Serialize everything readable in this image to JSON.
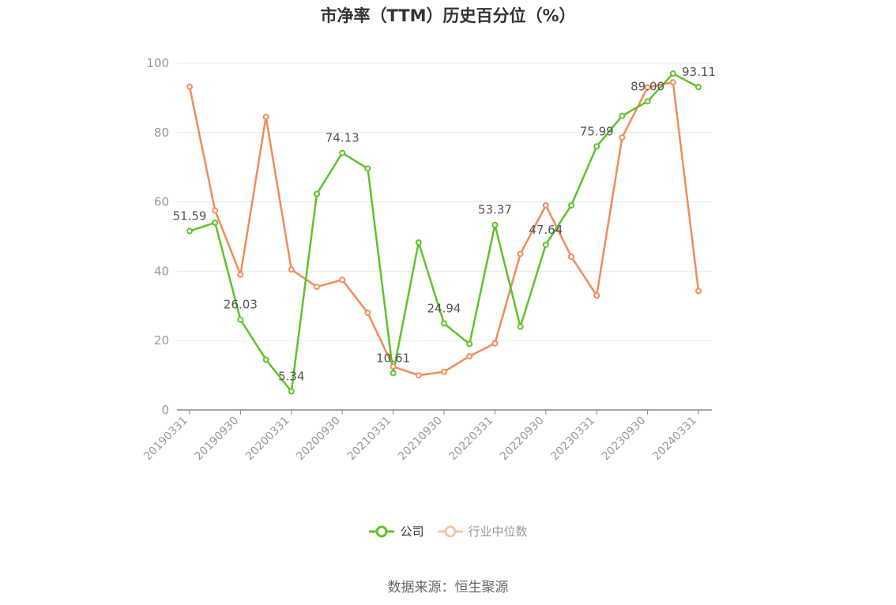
{
  "title": "市净率（TTM）历史百分位（%）",
  "source": "数据来源：恒生聚源",
  "colors": {
    "company": "#5ec32a",
    "industry": "#f08c5a",
    "axis": "#999999",
    "grid": "#e6e9f0"
  },
  "legend": {
    "company": "公司",
    "industry": "行业中位数"
  },
  "chart_data": {
    "type": "line",
    "ylim": [
      0,
      100
    ],
    "yticks": [
      "0",
      "20",
      "40",
      "60",
      "80",
      "100"
    ],
    "x": [
      "20190331",
      "20190630",
      "20190930",
      "20191231",
      "20200331",
      "20200630",
      "20200930",
      "20201231",
      "20210331",
      "20210630",
      "20210930",
      "20211231",
      "20220331",
      "20220630",
      "20220930",
      "20221231",
      "20230331",
      "20230630",
      "20230930",
      "20231231",
      "20240331"
    ],
    "xtick_labels": [
      "20190331",
      "20190930",
      "20200331",
      "20200930",
      "20210331",
      "20210930",
      "20220331",
      "20220930",
      "20230331",
      "20230930",
      "20240331"
    ],
    "series": [
      {
        "name": "公司",
        "values": [
          51.59,
          54.0,
          26.03,
          14.5,
          5.34,
          62.3,
          74.13,
          69.6,
          10.61,
          48.3,
          24.94,
          19.0,
          53.37,
          24.0,
          47.64,
          59.0,
          75.99,
          84.8,
          89.0,
          97.0,
          93.11
        ],
        "labels": {
          "0": "51.59",
          "2": "26.03",
          "4": "5.34",
          "6": "74.13",
          "8": "10.61",
          "10": "24.94",
          "12": "53.37",
          "14": "47.64",
          "16": "75.99",
          "18": "89.00",
          "20": "93.11"
        }
      },
      {
        "name": "行业中位数",
        "values": [
          93.2,
          57.5,
          39.0,
          84.5,
          40.5,
          35.5,
          37.5,
          28.0,
          12.5,
          10.0,
          11.0,
          15.5,
          19.2,
          45.0,
          59.0,
          44.2,
          33.0,
          78.6,
          93.0,
          94.5,
          34.3
        ]
      }
    ]
  }
}
